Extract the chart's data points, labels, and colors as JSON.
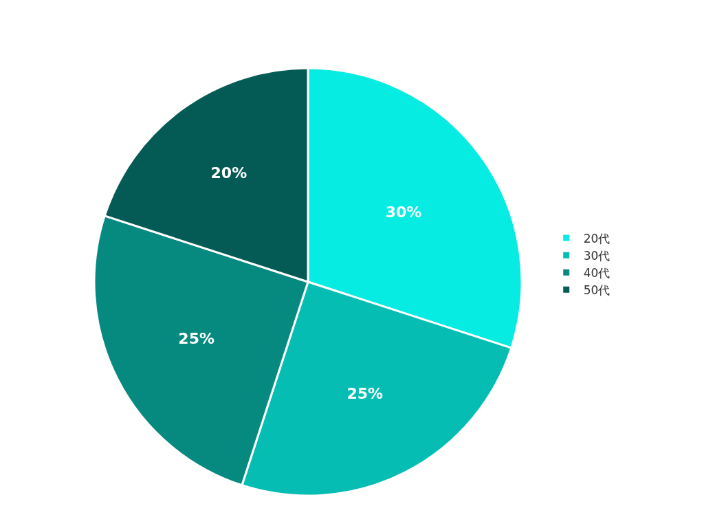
{
  "chart_data": {
    "type": "pie",
    "categories": [
      "20代",
      "30代",
      "40代",
      "50代"
    ],
    "values": [
      30,
      25,
      25,
      20
    ],
    "value_labels": [
      "30%",
      "25%",
      "25%",
      "20%"
    ],
    "colors": [
      "#06ece2",
      "#06bdb4",
      "#068a80",
      "#045b56"
    ],
    "legend": "right"
  }
}
